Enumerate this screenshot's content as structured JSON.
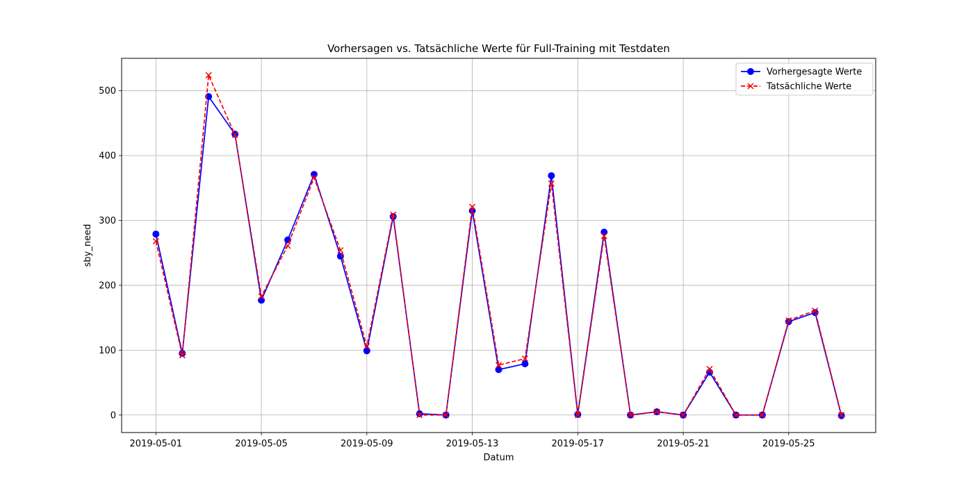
{
  "chart_data": {
    "type": "line",
    "title": "Vorhersagen vs. Tatsächliche Werte für Full-Training mit Testdaten",
    "xlabel": "Datum",
    "ylabel": "sby_need",
    "x": [
      "2019-05-01",
      "2019-05-02",
      "2019-05-03",
      "2019-05-04",
      "2019-05-05",
      "2019-05-06",
      "2019-05-07",
      "2019-05-08",
      "2019-05-09",
      "2019-05-10",
      "2019-05-11",
      "2019-05-12",
      "2019-05-13",
      "2019-05-14",
      "2019-05-15",
      "2019-05-16",
      "2019-05-17",
      "2019-05-18",
      "2019-05-19",
      "2019-05-20",
      "2019-05-21",
      "2019-05-22",
      "2019-05-23",
      "2019-05-24",
      "2019-05-25",
      "2019-05-26",
      "2019-05-27"
    ],
    "x_tick_labels": [
      "2019-05-01",
      "2019-05-05",
      "2019-05-09",
      "2019-05-13",
      "2019-05-17",
      "2019-05-21",
      "2019-05-25"
    ],
    "y_ticks": [
      0,
      100,
      200,
      300,
      400,
      500
    ],
    "ylim": [
      -27,
      550
    ],
    "xlim": [
      "2019-04-29 16:48",
      "2019-05-28 07:12"
    ],
    "grid": true,
    "legend_position": "top-right",
    "series": [
      {
        "name": "Vorhergesagte Werte",
        "color": "#0000ff",
        "linestyle": "solid",
        "marker": "circle",
        "values": [
          279,
          95,
          491,
          433,
          177,
          270,
          371,
          245,
          99,
          306,
          2,
          0,
          315,
          70,
          79,
          369,
          1,
          282,
          0,
          5,
          0,
          66,
          0,
          0,
          144,
          158,
          -1
        ]
      },
      {
        "name": "Tatsächliche Werte",
        "color": "#ff0000",
        "linestyle": "dashed",
        "marker": "x",
        "values": [
          268,
          92,
          524,
          432,
          183,
          261,
          366,
          254,
          106,
          309,
          0,
          0,
          321,
          77,
          87,
          357,
          0,
          276,
          0,
          5,
          0,
          71,
          0,
          0,
          146,
          161,
          0
        ]
      }
    ]
  }
}
